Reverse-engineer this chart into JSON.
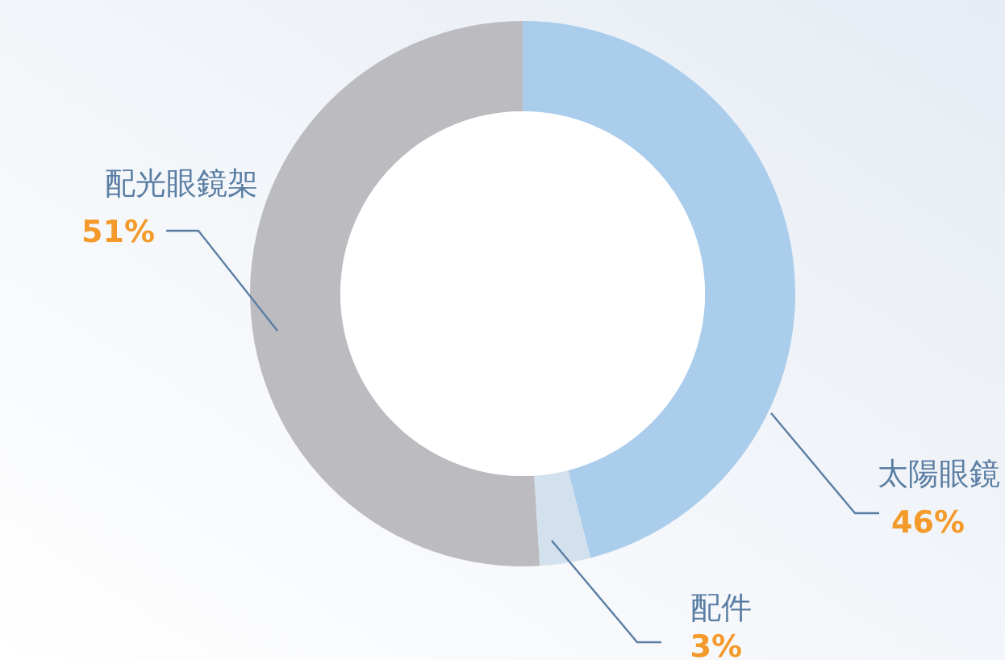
{
  "chart_data": {
    "type": "donut",
    "categories": [
      "太陽眼鏡",
      "配件",
      "配光眼鏡架"
    ],
    "values": [
      46,
      3,
      51
    ],
    "value_labels": [
      "46%",
      "3%",
      "51%"
    ],
    "colors": [
      "#abcdec",
      "#d3e1ee",
      "#bcbcc0"
    ]
  }
}
